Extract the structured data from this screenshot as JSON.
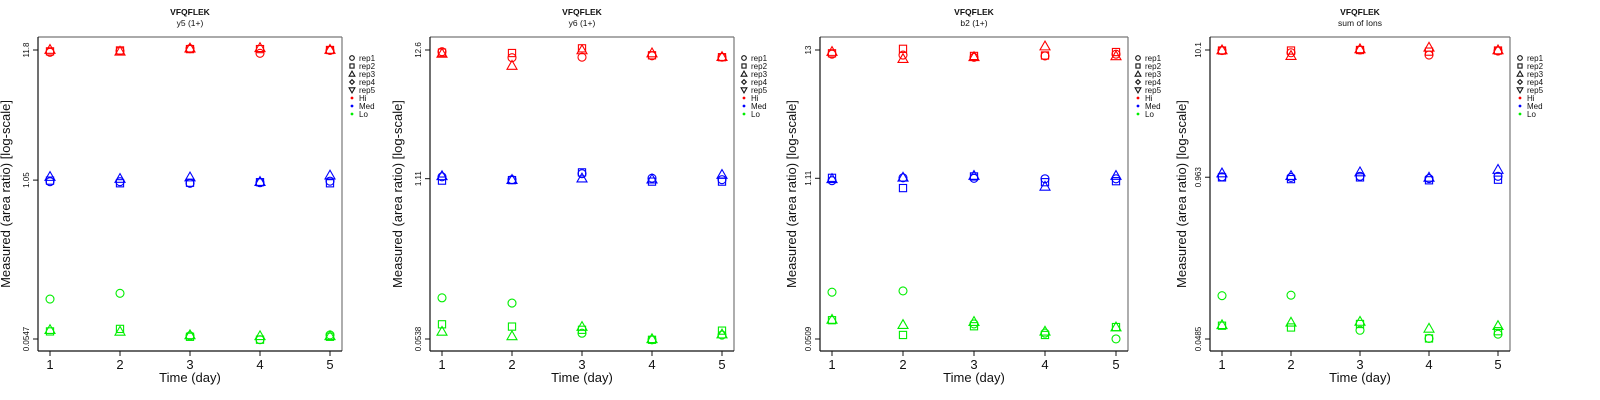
{
  "colors": {
    "Hi": "#ff0000",
    "Med": "#0000ff",
    "Lo": "#00ee00",
    "axis": "#000000"
  },
  "chart_data": [
    {
      "type": "scatter",
      "title": "VFQFLEK",
      "subtitle": "y5 (1+)",
      "xlabel": "Time (day)",
      "ylabel": "Measured (area ratio) [log-scale]",
      "x_ticks": [
        "1",
        "2",
        "3",
        "4",
        "5"
      ],
      "y_ticks": [
        11.8,
        1.05,
        0.0547
      ],
      "y_tick_labels": [
        "11.8",
        "1.05",
        "0.0547"
      ],
      "yscale": "log",
      "ylim": [
        0.047,
        14.0
      ],
      "legend": {
        "position": "right",
        "shapes": [
          "rep1",
          "rep2",
          "rep3",
          "rep4",
          "rep5"
        ],
        "groups": [
          "Hi",
          "Med",
          "Lo"
        ]
      },
      "series": [
        {
          "group": "Hi",
          "rep": "rep1",
          "values": [
            11.3,
            11.6,
            12.1,
            11.1,
            11.7
          ]
        },
        {
          "group": "Hi",
          "rep": "rep2",
          "values": [
            11.5,
            11.7,
            12.0,
            12.0,
            11.8
          ]
        },
        {
          "group": "Hi",
          "rep": "rep3",
          "values": [
            11.9,
            11.5,
            12.2,
            12.3,
            11.9
          ]
        },
        {
          "group": "Med",
          "rep": "rep1",
          "values": [
            1.02,
            1.02,
            0.99,
            1.0,
            1.03
          ]
        },
        {
          "group": "Med",
          "rep": "rep2",
          "values": [
            1.04,
            0.99,
            1.0,
            1.01,
            0.99
          ]
        },
        {
          "group": "Med",
          "rep": "rep3",
          "values": [
            1.12,
            1.08,
            1.11,
            1.02,
            1.15
          ]
        },
        {
          "group": "Lo",
          "rep": "rep1",
          "values": [
            0.115,
            0.128,
            0.058,
            0.054,
            0.059
          ]
        },
        {
          "group": "Lo",
          "rep": "rep2",
          "values": [
            0.063,
            0.066,
            0.057,
            0.054,
            0.057
          ]
        },
        {
          "group": "Lo",
          "rep": "rep3",
          "values": [
            0.065,
            0.063,
            0.059,
            0.058,
            0.058
          ]
        }
      ]
    },
    {
      "type": "scatter",
      "title": "VFQFLEK",
      "subtitle": "y6 (1+)",
      "xlabel": "Time (day)",
      "ylabel": "Measured (area ratio) [log-scale]",
      "x_ticks": [
        "1",
        "2",
        "3",
        "4",
        "5"
      ],
      "y_ticks": [
        12.6,
        1.11,
        0.0538
      ],
      "y_tick_labels": [
        "12.6",
        "1.11",
        "0.0538"
      ],
      "yscale": "log",
      "ylim": [
        0.046,
        15.0
      ],
      "legend": {
        "position": "right",
        "shapes": [
          "rep1",
          "rep2",
          "rep3",
          "rep4",
          "rep5"
        ],
        "groups": [
          "Hi",
          "Med",
          "Lo"
        ]
      },
      "series": [
        {
          "group": "Hi",
          "rep": "rep1",
          "values": [
            12.2,
            10.9,
            11.0,
            11.3,
            11.0
          ]
        },
        {
          "group": "Hi",
          "rep": "rep2",
          "values": [
            12.0,
            11.9,
            13.0,
            11.4,
            11.0
          ]
        },
        {
          "group": "Hi",
          "rep": "rep3",
          "values": [
            11.8,
            9.4,
            12.6,
            11.9,
            11.1
          ]
        },
        {
          "group": "Med",
          "rep": "rep1",
          "values": [
            1.15,
            1.09,
            1.22,
            1.12,
            1.09
          ]
        },
        {
          "group": "Med",
          "rep": "rep2",
          "values": [
            1.07,
            1.08,
            1.25,
            1.05,
            1.05
          ]
        },
        {
          "group": "Med",
          "rep": "rep3",
          "values": [
            1.17,
            1.09,
            1.12,
            1.1,
            1.2
          ]
        },
        {
          "group": "Lo",
          "rep": "rep1",
          "values": [
            0.117,
            0.106,
            0.06,
            0.053,
            0.058
          ]
        },
        {
          "group": "Lo",
          "rep": "rep2",
          "values": [
            0.071,
            0.068,
            0.064,
            0.053,
            0.063
          ]
        },
        {
          "group": "Lo",
          "rep": "rep3",
          "values": [
            0.062,
            0.057,
            0.068,
            0.054,
            0.059
          ]
        }
      ]
    },
    {
      "type": "scatter",
      "title": "VFQFLEK",
      "subtitle": "b2 (1+)",
      "xlabel": "Time (day)",
      "ylabel": "Measured (area ratio) [log-scale]",
      "x_ticks": [
        "1",
        "2",
        "3",
        "4",
        "5"
      ],
      "y_ticks": [
        13,
        1.11,
        0.0509
      ],
      "y_tick_labels": [
        "13",
        "1.11",
        "0.0509"
      ],
      "yscale": "log",
      "ylim": [
        0.044,
        15.5
      ],
      "legend": {
        "position": "right",
        "shapes": [
          "rep1",
          "rep2",
          "rep3",
          "rep4",
          "rep5"
        ],
        "groups": [
          "Hi",
          "Med",
          "Lo"
        ]
      },
      "series": [
        {
          "group": "Hi",
          "rep": "rep1",
          "values": [
            12.0,
            11.8,
            11.3,
            11.6,
            12.0
          ]
        },
        {
          "group": "Hi",
          "rep": "rep2",
          "values": [
            12.2,
            13.3,
            11.6,
            11.7,
            12.5
          ]
        },
        {
          "group": "Hi",
          "rep": "rep3",
          "values": [
            12.6,
            11.0,
            11.4,
            14.0,
            11.6
          ]
        },
        {
          "group": "Med",
          "rep": "rep1",
          "values": [
            1.06,
            1.12,
            1.11,
            1.1,
            1.1
          ]
        },
        {
          "group": "Med",
          "rep": "rep2",
          "values": [
            1.12,
            0.92,
            1.15,
            1.03,
            1.05
          ]
        },
        {
          "group": "Med",
          "rep": "rep3",
          "values": [
            1.1,
            1.13,
            1.17,
            0.95,
            1.17
          ]
        },
        {
          "group": "Lo",
          "rep": "rep1",
          "values": [
            0.125,
            0.128,
            0.068,
            0.057,
            0.051
          ]
        },
        {
          "group": "Lo",
          "rep": "rep2",
          "values": [
            0.073,
            0.055,
            0.065,
            0.055,
            0.064
          ]
        },
        {
          "group": "Lo",
          "rep": "rep3",
          "values": [
            0.074,
            0.067,
            0.071,
            0.059,
            0.064
          ]
        }
      ]
    },
    {
      "type": "scatter",
      "title": "VFQFLEK",
      "subtitle": "sum of Ions",
      "xlabel": "Time (day)",
      "ylabel": "Measured (area ratio) [log-scale]",
      "x_ticks": [
        "1",
        "2",
        "3",
        "4",
        "5"
      ],
      "y_ticks": [
        10.1,
        0.963,
        0.0485
      ],
      "y_tick_labels": [
        "10.1",
        "0.963",
        "0.0485"
      ],
      "yscale": "log",
      "ylim": [
        0.042,
        12.0
      ],
      "legend": {
        "position": "right",
        "shapes": [
          "rep1",
          "rep2",
          "rep3",
          "rep4",
          "rep5"
        ],
        "groups": [
          "Hi",
          "Med",
          "Lo"
        ]
      },
      "series": [
        {
          "group": "Hi",
          "rep": "rep1",
          "values": [
            10.0,
            9.6,
            10.1,
            9.2,
            9.9
          ]
        },
        {
          "group": "Hi",
          "rep": "rep2",
          "values": [
            10.0,
            10.0,
            10.1,
            9.8,
            10.0
          ]
        },
        {
          "group": "Hi",
          "rep": "rep3",
          "values": [
            10.1,
            9.1,
            10.3,
            10.6,
            10.1
          ]
        },
        {
          "group": "Med",
          "rep": "rep1",
          "values": [
            0.97,
            0.96,
            0.98,
            0.94,
            0.98
          ]
        },
        {
          "group": "Med",
          "rep": "rep2",
          "values": [
            0.96,
            0.93,
            0.96,
            0.91,
            0.92
          ]
        },
        {
          "group": "Med",
          "rep": "rep3",
          "values": [
            1.04,
            0.99,
            1.06,
            0.96,
            1.11
          ]
        },
        {
          "group": "Lo",
          "rep": "rep1",
          "values": [
            0.108,
            0.109,
            0.057,
            0.049,
            0.053
          ]
        },
        {
          "group": "Lo",
          "rep": "rep2",
          "values": [
            0.062,
            0.06,
            0.064,
            0.049,
            0.056
          ]
        },
        {
          "group": "Lo",
          "rep": "rep3",
          "values": [
            0.063,
            0.066,
            0.067,
            0.059,
            0.062
          ]
        }
      ]
    }
  ]
}
